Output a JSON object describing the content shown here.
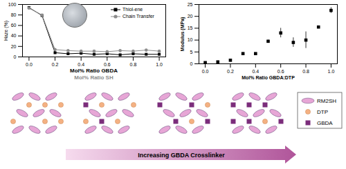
{
  "chart_data": [
    {
      "type": "line",
      "ylabel": "Haze (%)",
      "xlabel": [
        "Mol% Ratio GBDA",
        "Mol% Ratio SH"
      ],
      "x": [
        0,
        0.1,
        0.2,
        0.3,
        0.4,
        0.5,
        0.6,
        0.7,
        0.8,
        0.9,
        1.0
      ],
      "series": [
        {
          "name": "Thiol-ene",
          "color": "#000000",
          "marker": "square",
          "line_style": "solid",
          "values": [
            94,
            79,
            8,
            6,
            7,
            5,
            6,
            4,
            6,
            5,
            5
          ]
        },
        {
          "name": "Chain Transfer",
          "color": "#8c8c8c",
          "marker": "circle",
          "line_style": "solid",
          "values": [
            93,
            80,
            14,
            12,
            11,
            11,
            10,
            12,
            11,
            13,
            11
          ]
        }
      ],
      "xlim": [
        -0.05,
        1.05
      ],
      "ylim": [
        0,
        100
      ],
      "xticks": [
        {
          "value": 0,
          "label": "0.0"
        },
        {
          "value": 0.2,
          "label": "0.2"
        },
        {
          "value": 0.4,
          "label": "0.4"
        },
        {
          "value": 0.6,
          "label": "0.6"
        },
        {
          "value": 0.8,
          "label": "0.8"
        },
        {
          "value": 1.0,
          "label": "1.0"
        }
      ],
      "yticks": [
        0,
        20,
        40,
        60,
        80,
        100
      ],
      "legend": "top-right",
      "grid": false
    },
    {
      "type": "scatter",
      "ylabel": "Modulus (MPa)",
      "xlabel": "Mol% Ratio GBDA:DTP",
      "x": [
        0,
        0.1,
        0.2,
        0.3,
        0.4,
        0.5,
        0.6,
        0.7,
        0.8,
        0.9,
        1.0
      ],
      "values": [
        0.5,
        0.8,
        1.5,
        4.3,
        4.3,
        9.5,
        13,
        9,
        10,
        15.5,
        22.5
      ],
      "errors": [
        0.2,
        0.3,
        0.3,
        0.4,
        0.3,
        0.5,
        2,
        2,
        3.5,
        0.3,
        1.2
      ],
      "color": "#000000",
      "marker": "square",
      "xlim": [
        -0.05,
        1.05
      ],
      "ylim": [
        0,
        25
      ],
      "xticks": [
        {
          "value": 0,
          "label": "0.0"
        },
        {
          "value": 0.2,
          "label": "0.2"
        },
        {
          "value": 0.4,
          "label": "0.4"
        },
        {
          "value": 0.6,
          "label": "0.6"
        },
        {
          "value": 0.8,
          "label": "0.8"
        },
        {
          "value": 1.0,
          "label": "1.0"
        }
      ],
      "yticks": [
        0,
        5,
        10,
        15,
        20,
        25
      ],
      "grid": false
    }
  ],
  "diagram": {
    "legend": [
      {
        "label": "RM2SH",
        "shape": "ellipse",
        "color": "#e7a6d6"
      },
      {
        "label": "DTP",
        "shape": "circle",
        "color": "#f4b183"
      },
      {
        "label": "GBDA",
        "shape": "square",
        "color": "#7b2d7b"
      }
    ],
    "arrow_label": "Increasing GBDA Crosslinker"
  }
}
